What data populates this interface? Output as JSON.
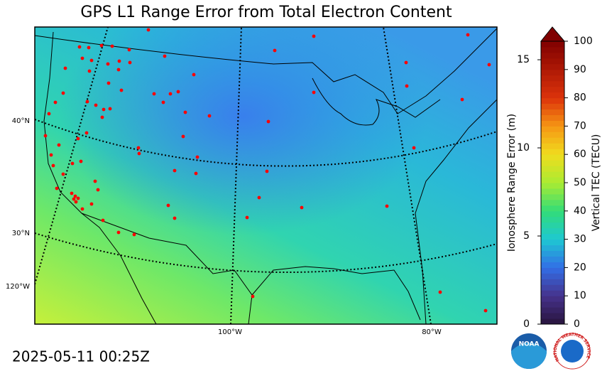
{
  "title": "GPS L1 Range Error from Total Electron Content",
  "timestamp": "2025-05-11 00:25Z",
  "map": {
    "latitude_labels": [
      "40°N",
      "30°N"
    ],
    "longitude_labels": [
      "120°W",
      "100°W",
      "80°W"
    ]
  },
  "colorbar": {
    "tec_label": "Vertical TEC (TECU)",
    "tec_lim": [
      0,
      100
    ],
    "tec_ticks": [
      0,
      10,
      20,
      30,
      40,
      50,
      60,
      70,
      80,
      90,
      100
    ],
    "range_label": "Ionosphere Range Error (m)",
    "range_lim": [
      0,
      16.05
    ],
    "range_ticks": [
      0,
      5,
      10,
      15
    ]
  },
  "logos": {
    "noaa": "NOAA",
    "nws": "NATIONAL WEATHER SERVICE"
  }
}
